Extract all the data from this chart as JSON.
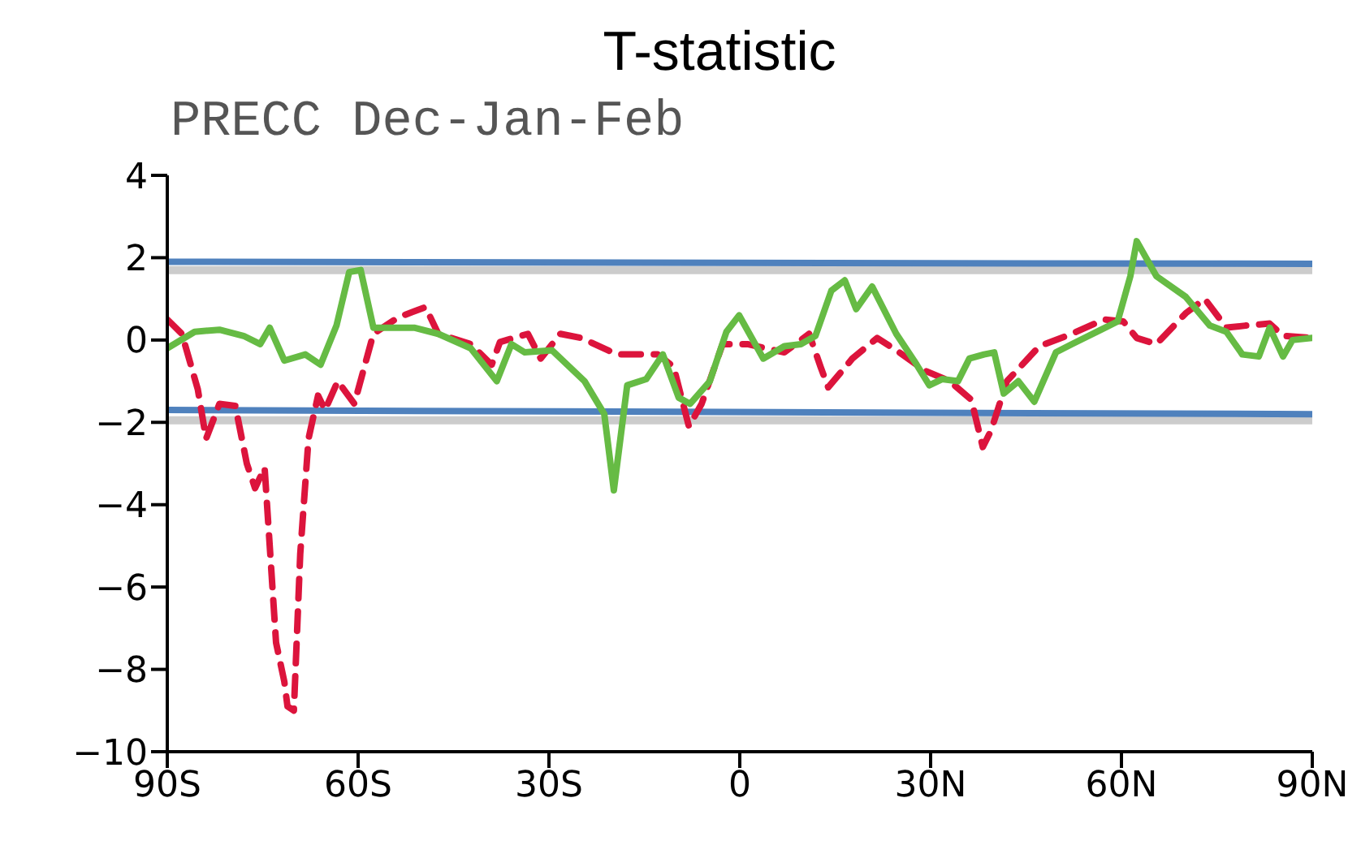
{
  "chart_data": {
    "type": "line",
    "title": "T-statistic",
    "subtitle": "PRECC Dec-Jan-Feb",
    "xlim": [
      -90,
      90
    ],
    "xticks": [
      {
        "value": -90,
        "label": "90S"
      },
      {
        "value": -60,
        "label": "60S"
      },
      {
        "value": -30,
        "label": "30S"
      },
      {
        "value": 0,
        "label": "0"
      },
      {
        "value": 30,
        "label": "30N"
      },
      {
        "value": 60,
        "label": "60N"
      },
      {
        "value": 90,
        "label": "90N"
      }
    ],
    "ylim": [
      -10,
      4
    ],
    "yticks": [
      {
        "value": -10,
        "label": "−10"
      },
      {
        "value": -8,
        "label": "−8"
      },
      {
        "value": -6,
        "label": "−6"
      },
      {
        "value": -4,
        "label": "−4"
      },
      {
        "value": -2,
        "label": "−2"
      },
      0,
      2,
      4
    ],
    "marker": "none",
    "ref_lines": [
      {
        "axis": "y",
        "value": 1.7,
        "color": "#cccccc"
      },
      {
        "axis": "y",
        "value": -1.95,
        "color": "#cccccc"
      }
    ],
    "series": [
      {
        "color": "#4f81bd",
        "line_style": "solid",
        "x": [
          -90,
          90
        ],
        "values": [
          1.9,
          1.85
        ]
      },
      {
        "color": "#4f81bd",
        "line_style": "solid",
        "x": [
          -90,
          90
        ],
        "values": [
          -1.7,
          -1.8
        ]
      },
      {
        "color": "#dc143c",
        "line_style": "dashed",
        "x": [
          -90,
          -87.7,
          -85.2,
          -83.9,
          -81.8,
          -79.3,
          -77.5,
          -76.2,
          -74.7,
          -72.9,
          -71.6,
          -71.1,
          -70.1,
          -69.1,
          -67.8,
          -66.3,
          -65.2,
          -63.2,
          -60.6,
          -57.6,
          -53.7,
          -49.4,
          -47.4,
          -42.3,
          -39,
          -37.7,
          -33.3,
          -31.3,
          -28.2,
          -24.9,
          -19.3,
          -12.9,
          -10.4,
          -8,
          -6,
          -2.7,
          1.2,
          7,
          10.9,
          12.7,
          13.9,
          17.7,
          21.6,
          24.6,
          29.2,
          33,
          36.4,
          38.2,
          39.5,
          42,
          47.1,
          52.2,
          57.3,
          60.3,
          62.4,
          65.5,
          70.1,
          73.1,
          76.5,
          79.5,
          83.3,
          85.4,
          90
        ],
        "values": [
          0.5,
          0.15,
          -1.2,
          -2.4,
          -1.55,
          -1.6,
          -3,
          -3.6,
          -3.1,
          -7.35,
          -8.3,
          -8.9,
          -9,
          -5.2,
          -2.4,
          -1.35,
          -1.7,
          -1,
          -1.55,
          0.15,
          0.55,
          0.8,
          0.15,
          -0.1,
          -0.6,
          -0.05,
          0.15,
          -0.45,
          0.15,
          0.05,
          -0.35,
          -0.35,
          -0.65,
          -2.1,
          -1.55,
          -0.1,
          -0.1,
          -0.3,
          0.15,
          -0.65,
          -1.15,
          -0.45,
          0.05,
          -0.25,
          -0.75,
          -1,
          -1.45,
          -2.6,
          -2.2,
          -1,
          -0.15,
          0.15,
          0.5,
          0.45,
          0.05,
          -0.1,
          0.65,
          1,
          0.3,
          0.35,
          0.4,
          0.1,
          0.05
        ]
      },
      {
        "color": "#66bb44",
        "line_style": "solid",
        "x": [
          -90,
          -85.7,
          -81.8,
          -78,
          -75.4,
          -73.9,
          -71.6,
          -68.3,
          -65.9,
          -63.4,
          -61.4,
          -59.6,
          -57.6,
          -51.2,
          -47.4,
          -42.3,
          -38.2,
          -35.9,
          -33.8,
          -29.5,
          -24.4,
          -21.3,
          -19.8,
          -17.7,
          -14.7,
          -12.1,
          -9.6,
          -7.8,
          -4.7,
          -2.1,
          -0.1,
          3.7,
          7,
          9.6,
          11.9,
          14.4,
          16.5,
          18.3,
          20.8,
          24.6,
          27.4,
          29.8,
          31.8,
          34.3,
          36.1,
          38.4,
          40,
          41.5,
          43.8,
          46.3,
          49.7,
          52.2,
          56.8,
          59.4,
          61.4,
          62.4,
          65.5,
          70.1,
          73.9,
          76.5,
          79,
          81.6,
          83.3,
          85.4,
          86.9,
          90
        ],
        "values": [
          -0.2,
          0.2,
          0.25,
          0.1,
          -0.1,
          0.3,
          -0.5,
          -0.35,
          -0.6,
          0.35,
          1.65,
          1.7,
          0.3,
          0.3,
          0.15,
          -0.2,
          -1,
          -0.1,
          -0.3,
          -0.25,
          -1,
          -1.8,
          -3.65,
          -1.1,
          -0.95,
          -0.35,
          -1.4,
          -1.55,
          -1,
          0.2,
          0.6,
          -0.45,
          -0.15,
          -0.1,
          0.1,
          1.2,
          1.45,
          0.75,
          1.3,
          0.15,
          -0.5,
          -1.1,
          -0.95,
          -1,
          -0.45,
          -0.35,
          -0.3,
          -1.3,
          -1,
          -1.5,
          -0.3,
          -0.1,
          0.25,
          0.45,
          1.55,
          2.4,
          1.55,
          1.05,
          0.35,
          0.2,
          -0.35,
          -0.4,
          0.3,
          -0.4,
          0,
          0.05
        ]
      }
    ]
  }
}
